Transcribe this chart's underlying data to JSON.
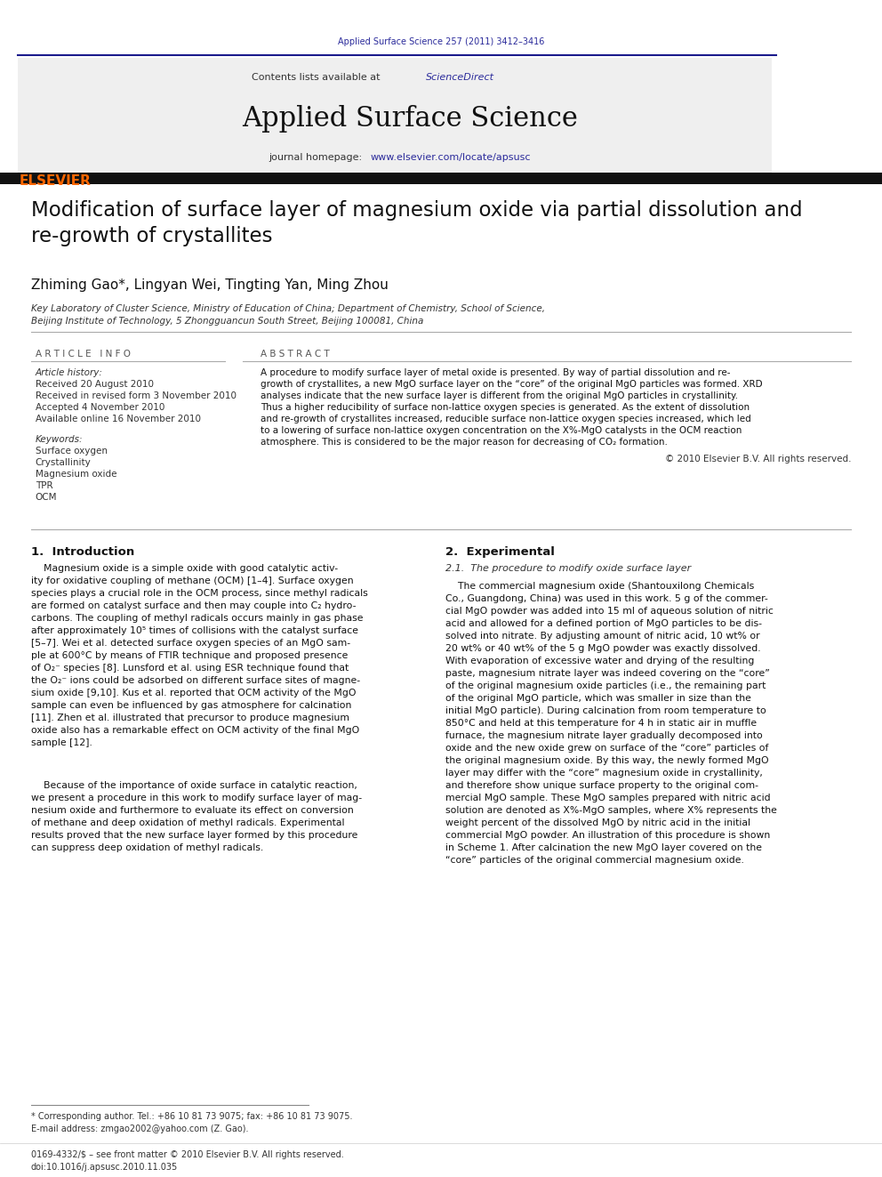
{
  "page_width": 9.92,
  "page_height": 13.23,
  "bg_color": "#ffffff",
  "header_citation": "Applied Surface Science 257 (2011) 3412–3416",
  "header_citation_color": "#2B2B9B",
  "journal_name": "Applied Surface Science",
  "contents_text": "Contents lists available at ",
  "sciencedirect_text": "ScienceDirect",
  "sciencedirect_color": "#2B2B9B",
  "journal_homepage_text": "journal homepage: ",
  "journal_url": "www.elsevier.com/locate/apsusc",
  "journal_url_color": "#2B2B9B",
  "header_bg": "#f0f0f0",
  "elsevier_color": "#FF6600",
  "top_bar_color": "#1a1a8c",
  "bottom_bar_color": "#000000",
  "paper_title": "Modification of surface layer of magnesium oxide via partial dissolution and\nre-growth of crystallites",
  "authors": "Zhiming Gao*, Lingyan Wei, Tingting Yan, Ming Zhou",
  "affiliation_line1": "Key Laboratory of Cluster Science, Ministry of Education of China; Department of Chemistry, School of Science,",
  "affiliation_line2": "Beijing Institute of Technology, 5 Zhongguancun South Street, Beijing 100081, China",
  "article_info_header": "A R T I C L E   I N F O",
  "abstract_header": "A B S T R A C T",
  "article_history_label": "Article history:",
  "received_text": "Received 20 August 2010",
  "revised_text": "Received in revised form 3 November 2010",
  "accepted_text": "Accepted 4 November 2010",
  "available_text": "Available online 16 November 2010",
  "keywords_label": "Keywords:",
  "keyword1": "Surface oxygen",
  "keyword2": "Crystallinity",
  "keyword3": "Magnesium oxide",
  "keyword4": "TPR",
  "keyword5": "OCM",
  "copyright_text": "© 2010 Elsevier B.V. All rights reserved.",
  "section1_title": "1.  Introduction",
  "section2_title": "2.  Experimental",
  "subsection2_title": "2.1.  The procedure to modify oxide surface layer",
  "footnote_star": "* Corresponding author. Tel.: +86 10 81 73 9075; fax: +86 10 81 73 9075.",
  "footnote_email": "E-mail address: zmgao2002@yahoo.com (Z. Gao).",
  "footer_issn": "0169-4332/$ – see front matter © 2010 Elsevier B.V. All rights reserved.",
  "footer_doi": "doi:10.1016/j.apsusc.2010.11.035",
  "ref_color": "#2B2B9B"
}
